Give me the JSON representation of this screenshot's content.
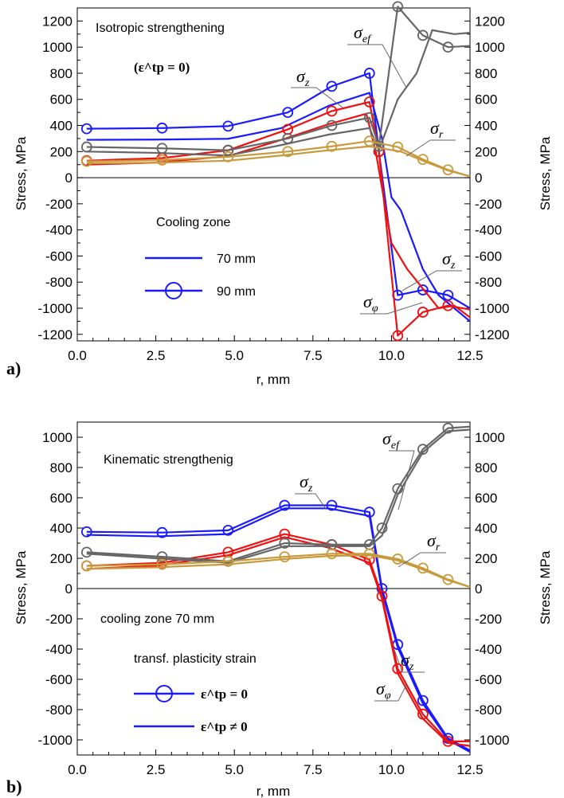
{
  "colors": {
    "blue": "#1a1aff",
    "red": "#ee1111",
    "gray": "#666666",
    "gold": "#c89a3c"
  },
  "chart_data": [
    {
      "type": "line",
      "panel_label": "a)",
      "title": "",
      "annotation_title": "Isotropic strengthening",
      "annotation_condition": "(ε^tp = 0)",
      "xlabel": "r, mm",
      "ylabel_left": "Stress, MPa",
      "ylabel_right": "Stress, MPa",
      "xlim": [
        0,
        12.5
      ],
      "ylim": [
        -1250,
        1300
      ],
      "x_ticks": [
        0.0,
        2.5,
        5.0,
        7.5,
        10.0,
        12.5
      ],
      "x_tick_labels": [
        "0.0",
        "2.5",
        "5.0",
        "7.5",
        "10.0",
        "12.5"
      ],
      "y_ticks": [
        -1200,
        -1000,
        -800,
        -600,
        -400,
        -200,
        0,
        200,
        400,
        600,
        800,
        1000,
        1200
      ],
      "y_tick_labels": [
        "-1200",
        "-1000",
        "-800",
        "-600",
        "-400",
        "-200",
        "0",
        "200",
        "400",
        "600",
        "800",
        "1000",
        "1200"
      ],
      "legend": {
        "title": "Cooling zone",
        "entries": [
          {
            "label": "70 mm",
            "marker": "none"
          },
          {
            "label": "90 mm",
            "marker": "circle"
          }
        ]
      },
      "curve_labels": [
        {
          "base": "σ",
          "sub": "ef"
        },
        {
          "base": "σ",
          "sub": "z"
        },
        {
          "base": "σ",
          "sub": "r"
        },
        {
          "base": "σ",
          "sub": "z"
        },
        {
          "base": "σ",
          "sub": "φ"
        }
      ],
      "series": [
        {
          "component": "σz",
          "color": "blue",
          "cooling_zone": "70 mm",
          "markers": false,
          "points": [
            [
              0.3,
              290
            ],
            [
              2.5,
              292
            ],
            [
              4.8,
              298
            ],
            [
              6.5,
              380
            ],
            [
              8.0,
              550
            ],
            [
              9.3,
              650
            ],
            [
              9.7,
              300
            ],
            [
              10.0,
              -150
            ],
            [
              10.3,
              -250
            ],
            [
              11.0,
              -700
            ],
            [
              11.5,
              -900
            ],
            [
              12.5,
              -1100
            ]
          ]
        },
        {
          "component": "σz",
          "color": "blue",
          "cooling_zone": "90 mm",
          "markers": true,
          "points": [
            [
              0.3,
              375
            ],
            [
              2.7,
              380
            ],
            [
              4.8,
              395
            ],
            [
              6.7,
              500
            ],
            [
              8.1,
              700
            ],
            [
              9.3,
              800
            ],
            [
              9.6,
              200
            ],
            [
              10.2,
              -900
            ],
            [
              11.0,
              -860
            ],
            [
              11.8,
              -900
            ],
            [
              12.5,
              -1000
            ]
          ]
        },
        {
          "component": "σφ",
          "color": "red",
          "cooling_zone": "70 mm",
          "markers": false,
          "points": [
            [
              0.3,
              100
            ],
            [
              2.5,
              115
            ],
            [
              4.8,
              165
            ],
            [
              6.5,
              290
            ],
            [
              8.0,
              410
            ],
            [
              9.2,
              490
            ],
            [
              9.5,
              200
            ],
            [
              10.0,
              -500
            ],
            [
              10.5,
              -700
            ],
            [
              11.0,
              -850
            ],
            [
              11.5,
              -1000
            ],
            [
              12.0,
              -980
            ],
            [
              12.5,
              -1070
            ]
          ]
        },
        {
          "component": "σφ",
          "color": "red",
          "cooling_zone": "90 mm",
          "markers": true,
          "points": [
            [
              0.3,
              130
            ],
            [
              2.7,
              150
            ],
            [
              4.8,
              210
            ],
            [
              6.7,
              370
            ],
            [
              8.1,
              510
            ],
            [
              9.3,
              580
            ],
            [
              9.6,
              200
            ],
            [
              10.2,
              -1210
            ],
            [
              11.0,
              -1030
            ],
            [
              11.8,
              -980
            ],
            [
              12.5,
              -1010
            ]
          ]
        },
        {
          "component": "σef",
          "color": "gray",
          "cooling_zone": "70 mm",
          "markers": false,
          "points": [
            [
              0.3,
              200
            ],
            [
              2.5,
              190
            ],
            [
              4.8,
              170
            ],
            [
              6.5,
              250
            ],
            [
              8.0,
              330
            ],
            [
              9.3,
              380
            ],
            [
              9.6,
              210
            ],
            [
              10.2,
              600
            ],
            [
              10.8,
              800
            ],
            [
              11.3,
              1130
            ],
            [
              12.0,
              1100
            ],
            [
              12.5,
              1110
            ]
          ]
        },
        {
          "component": "σef",
          "color": "gray",
          "cooling_zone": "90 mm",
          "markers": true,
          "points": [
            [
              0.3,
              235
            ],
            [
              2.7,
              225
            ],
            [
              4.8,
              210
            ],
            [
              6.7,
              300
            ],
            [
              8.1,
              400
            ],
            [
              9.3,
              460
            ],
            [
              9.6,
              240
            ],
            [
              10.2,
              1310
            ],
            [
              11.0,
              1090
            ],
            [
              11.8,
              1000
            ],
            [
              12.5,
              1010
            ]
          ]
        },
        {
          "component": "σr",
          "color": "gold",
          "cooling_zone": "70 mm",
          "markers": false,
          "points": [
            [
              0.3,
              110
            ],
            [
              2.5,
              115
            ],
            [
              4.8,
              130
            ],
            [
              6.5,
              170
            ],
            [
              8.0,
              210
            ],
            [
              9.3,
              240
            ],
            [
              10.3,
              200
            ],
            [
              11.0,
              130
            ],
            [
              11.8,
              55
            ],
            [
              12.5,
              10
            ]
          ]
        },
        {
          "component": "σr",
          "color": "gold",
          "cooling_zone": "90 mm",
          "markers": true,
          "points": [
            [
              0.3,
              125
            ],
            [
              2.7,
              135
            ],
            [
              4.8,
              160
            ],
            [
              6.7,
              200
            ],
            [
              8.1,
              240
            ],
            [
              9.3,
              280
            ],
            [
              10.2,
              235
            ],
            [
              11.0,
              140
            ],
            [
              11.8,
              60
            ],
            [
              12.5,
              10
            ]
          ]
        }
      ]
    },
    {
      "type": "line",
      "panel_label": "b)",
      "title": "",
      "annotation_title": "Kinematic strengthenig",
      "annotation_condition": "cooling zone 70 mm",
      "xlabel": "r, mm",
      "ylabel_left": "Stress, MPa",
      "ylabel_right": "Stress, MPa",
      "xlim": [
        0,
        12.5
      ],
      "ylim": [
        -1100,
        1100
      ],
      "x_ticks": [
        0.0,
        2.5,
        5.0,
        7.5,
        10.0,
        12.5
      ],
      "x_tick_labels": [
        "0.0",
        "2.5",
        "5.0",
        "7.5",
        "10.0",
        "12.5"
      ],
      "y_ticks": [
        -1000,
        -800,
        -600,
        -400,
        -200,
        0,
        200,
        400,
        600,
        800,
        1000
      ],
      "y_tick_labels": [
        "-1000",
        "-800",
        "-600",
        "-400",
        "-200",
        "0",
        "200",
        "400",
        "600",
        "800",
        "1000"
      ],
      "legend": {
        "title": "transf. plasticity strain",
        "entries": [
          {
            "label": "ε^tp = 0",
            "marker": "circle"
          },
          {
            "label": "ε^tp ≠ 0",
            "marker": "none"
          }
        ]
      },
      "curve_labels": [
        {
          "base": "σ",
          "sub": "ef"
        },
        {
          "base": "σ",
          "sub": "z"
        },
        {
          "base": "σ",
          "sub": "r"
        },
        {
          "base": "σ",
          "sub": "z"
        },
        {
          "base": "σ",
          "sub": "φ"
        }
      ],
      "series": [
        {
          "component": "σz",
          "color": "blue",
          "case": "ε^tp = 0",
          "markers": true,
          "points": [
            [
              0.3,
              375
            ],
            [
              2.7,
              370
            ],
            [
              4.8,
              385
            ],
            [
              6.6,
              550
            ],
            [
              8.1,
              550
            ],
            [
              9.3,
              505
            ],
            [
              9.7,
              0
            ],
            [
              10.2,
              -370
            ],
            [
              11.0,
              -740
            ],
            [
              11.8,
              -990
            ],
            [
              12.5,
              -1070
            ]
          ]
        },
        {
          "component": "σz",
          "color": "blue",
          "case": "ε^tp ≠ 0",
          "markers": false,
          "points": [
            [
              0.3,
              355
            ],
            [
              2.5,
              345
            ],
            [
              4.8,
              360
            ],
            [
              6.6,
              530
            ],
            [
              8.0,
              530
            ],
            [
              9.3,
              480
            ],
            [
              9.7,
              -20
            ],
            [
              10.2,
              -390
            ],
            [
              11.0,
              -760
            ],
            [
              11.8,
              -1000
            ],
            [
              12.5,
              -1080
            ]
          ]
        },
        {
          "component": "σφ",
          "color": "red",
          "case": "ε^tp = 0",
          "markers": true,
          "points": [
            [
              0.3,
              150
            ],
            [
              2.7,
              170
            ],
            [
              4.8,
              240
            ],
            [
              6.6,
              360
            ],
            [
              8.1,
              290
            ],
            [
              9.3,
              190
            ],
            [
              9.7,
              -50
            ],
            [
              10.2,
              -530
            ],
            [
              11.0,
              -830
            ],
            [
              11.8,
              -1010
            ],
            [
              12.5,
              -1010
            ]
          ]
        },
        {
          "component": "σφ",
          "color": "red",
          "case": "ε^tp ≠ 0",
          "markers": false,
          "points": [
            [
              0.3,
              130
            ],
            [
              2.5,
              150
            ],
            [
              4.8,
              220
            ],
            [
              6.6,
              340
            ],
            [
              8.0,
              270
            ],
            [
              9.3,
              170
            ],
            [
              9.7,
              -70
            ],
            [
              10.2,
              -560
            ],
            [
              11.0,
              -860
            ],
            [
              11.8,
              -1020
            ],
            [
              12.5,
              -1040
            ]
          ]
        },
        {
          "component": "σef",
          "color": "gray",
          "case": "ε^tp = 0",
          "markers": true,
          "points": [
            [
              0.3,
              240
            ],
            [
              2.7,
              210
            ],
            [
              4.8,
              180
            ],
            [
              6.6,
              300
            ],
            [
              8.1,
              290
            ],
            [
              9.3,
              290
            ],
            [
              9.7,
              400
            ],
            [
              10.2,
              660
            ],
            [
              11.0,
              920
            ],
            [
              11.8,
              1060
            ],
            [
              12.5,
              1070
            ]
          ]
        },
        {
          "component": "σef",
          "color": "gray",
          "case": "ε^tp ≠ 0",
          "markers": false,
          "points": [
            [
              0.3,
              230
            ],
            [
              2.5,
              200
            ],
            [
              4.8,
              170
            ],
            [
              6.6,
              280
            ],
            [
              8.0,
              280
            ],
            [
              9.3,
              280
            ],
            [
              9.7,
              350
            ],
            [
              10.2,
              620
            ],
            [
              11.0,
              900
            ],
            [
              11.8,
              1040
            ],
            [
              12.5,
              1050
            ]
          ]
        },
        {
          "component": "σr",
          "color": "gold",
          "case": "ε^tp = 0",
          "markers": true,
          "points": [
            [
              0.3,
              150
            ],
            [
              2.7,
              160
            ],
            [
              4.8,
              180
            ],
            [
              6.6,
              210
            ],
            [
              8.1,
              230
            ],
            [
              9.3,
              230
            ],
            [
              10.2,
              195
            ],
            [
              11.0,
              135
            ],
            [
              11.8,
              60
            ],
            [
              12.5,
              10
            ]
          ]
        },
        {
          "component": "σr",
          "color": "gold",
          "case": "ε^tp ≠ 0",
          "markers": false,
          "points": [
            [
              0.3,
              130
            ],
            [
              2.5,
              140
            ],
            [
              4.8,
              160
            ],
            [
              6.6,
              195
            ],
            [
              8.0,
              215
            ],
            [
              9.3,
              220
            ],
            [
              10.2,
              185
            ],
            [
              11.0,
              125
            ],
            [
              11.8,
              55
            ],
            [
              12.5,
              10
            ]
          ]
        }
      ]
    }
  ]
}
